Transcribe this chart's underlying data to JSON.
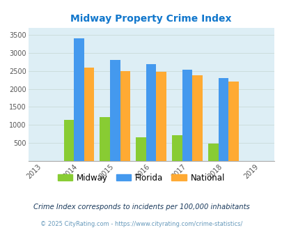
{
  "title": "Midway Property Crime Index",
  "title_color": "#1177cc",
  "years": [
    2013,
    2014,
    2015,
    2016,
    2017,
    2018,
    2019
  ],
  "data_years": [
    2014,
    2015,
    2016,
    2017,
    2018
  ],
  "midway": [
    1150,
    1220,
    660,
    720,
    490
  ],
  "florida": [
    3400,
    2810,
    2680,
    2540,
    2300
  ],
  "national": [
    2590,
    2490,
    2470,
    2370,
    2210
  ],
  "midway_color": "#88cc33",
  "florida_color": "#4499ee",
  "national_color": "#ffaa33",
  "bg_color": "#ddeef5",
  "ylim": [
    0,
    3700
  ],
  "yticks": [
    0,
    500,
    1000,
    1500,
    2000,
    2500,
    3000,
    3500
  ],
  "note1": "Crime Index corresponds to incidents per 100,000 inhabitants",
  "note2": "© 2025 CityRating.com - https://www.cityrating.com/crime-statistics/",
  "note1_color": "#1a3a5c",
  "note2_color": "#6699bb",
  "legend_labels": [
    "Midway",
    "Florida",
    "National"
  ],
  "bar_width": 0.28
}
